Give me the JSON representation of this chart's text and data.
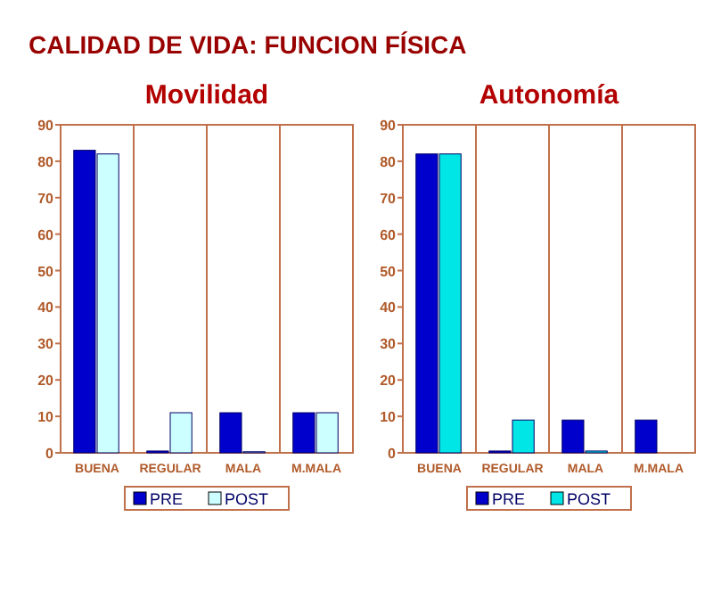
{
  "chart_data": [
    {
      "type": "bar",
      "title": "Movilidad",
      "categories": [
        "BUENA",
        "REGULAR",
        "MALA",
        "M.MALA"
      ],
      "ylim": [
        0,
        90
      ],
      "yticks": [
        0,
        10,
        20,
        30,
        40,
        50,
        60,
        70,
        80,
        90
      ],
      "legend": "bottom",
      "annotations": [
        "CALIDAD DE VIDA: FUNCION FÍSICA"
      ],
      "series": [
        {
          "name": "PRE",
          "color": "#0000cc",
          "values": [
            83,
            0.5,
            11,
            11
          ]
        },
        {
          "name": "POST",
          "color": "#ccffff",
          "values": [
            82,
            11,
            0.3,
            11
          ]
        }
      ]
    },
    {
      "type": "bar",
      "title": "Autonomía",
      "categories": [
        "BUENA",
        "REGULAR",
        "MALA",
        "M.MALA"
      ],
      "ylim": [
        0,
        90
      ],
      "yticks": [
        0,
        10,
        20,
        30,
        40,
        50,
        60,
        70,
        80,
        90
      ],
      "legend": "bottom",
      "series": [
        {
          "name": "PRE",
          "color": "#0000cc",
          "values": [
            82,
            0.5,
            9,
            9
          ]
        },
        {
          "name": "POST",
          "color": "#00e6e6",
          "values": [
            82,
            9,
            0.5,
            null
          ]
        }
      ]
    }
  ]
}
